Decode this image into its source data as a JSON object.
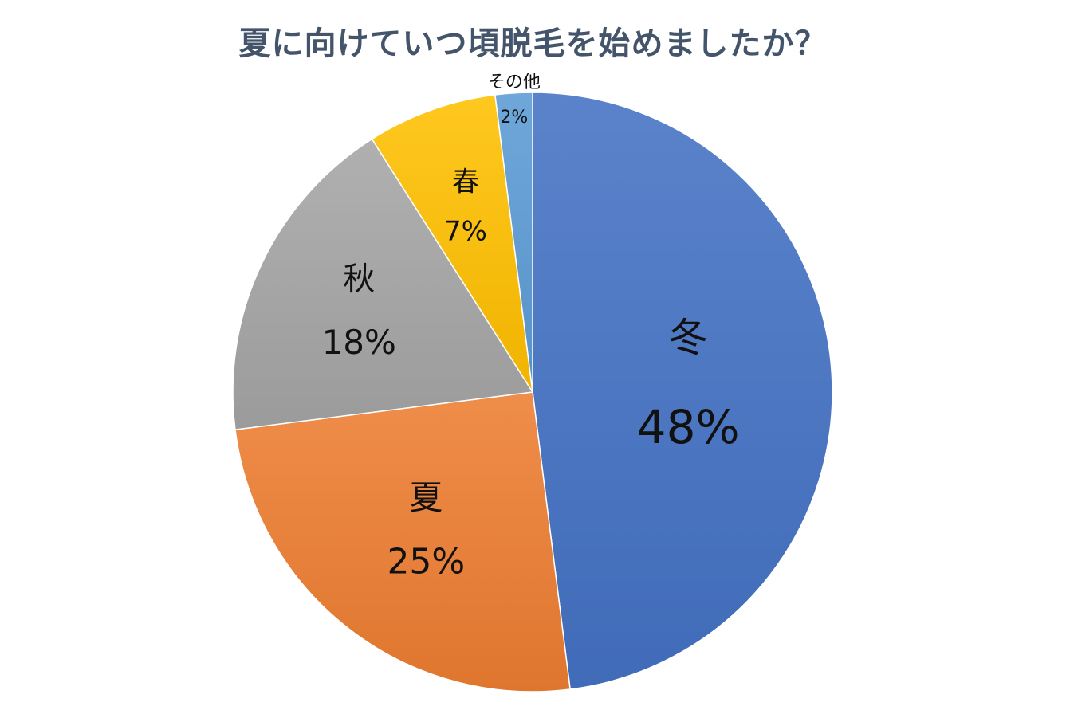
{
  "chart_data": {
    "type": "pie",
    "title": "夏に向けていつ頃脱毛を始めましたか？",
    "slices": [
      {
        "label": "冬",
        "value": 48,
        "value_label": "48%",
        "color": "#4472c4"
      },
      {
        "label": "夏",
        "value": 25,
        "value_label": "25%",
        "color": "#ed7d31"
      },
      {
        "label": "秋",
        "value": 18,
        "value_label": "18%",
        "color": "#a5a5a5"
      },
      {
        "label": "春",
        "value": 7,
        "value_label": "7%",
        "color": "#ffc000"
      },
      {
        "label": "その他",
        "value": 2,
        "value_label": "2%",
        "color": "#5b9bd5"
      }
    ],
    "start": "12 o'clock",
    "direction": "clockwise",
    "legend": "none"
  },
  "colors": {
    "title": "#44546a"
  }
}
